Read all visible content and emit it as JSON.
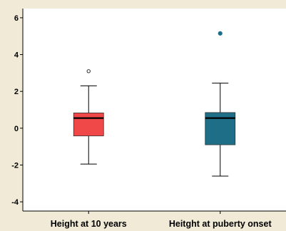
{
  "chart_data": {
    "type": "box",
    "title": "",
    "xlabel": "",
    "ylabel": "",
    "ylim": [
      -4.5,
      6.5
    ],
    "yticks": [
      -4,
      -2,
      0,
      2,
      4,
      6
    ],
    "ytick_labels": [
      "-4",
      "-2",
      "0",
      "2",
      "4",
      "6"
    ],
    "grid": false,
    "categories": [
      "Height at 10 years",
      "Heitght at puberty onset"
    ],
    "series": [
      {
        "category": "Height at 10 years",
        "whisker_low": -1.95,
        "q1": -0.42,
        "median": 0.55,
        "q3": 0.83,
        "whisker_high": 2.3,
        "outliers": [
          3.1
        ],
        "outlier_style": "hollow",
        "color": "#f04848"
      },
      {
        "category": "Heitght at puberty onset",
        "whisker_low": -2.6,
        "q1": -0.9,
        "median": 0.55,
        "q3": 0.85,
        "whisker_high": 2.45,
        "outliers": [
          5.15
        ],
        "outlier_style": "filled",
        "color": "#1f6e88"
      }
    ],
    "colors": {
      "plot_bg": "#ffffff",
      "page_bg": "#f0ead6",
      "axis": "#000000",
      "outlier_filled": "#1f6e88"
    }
  }
}
